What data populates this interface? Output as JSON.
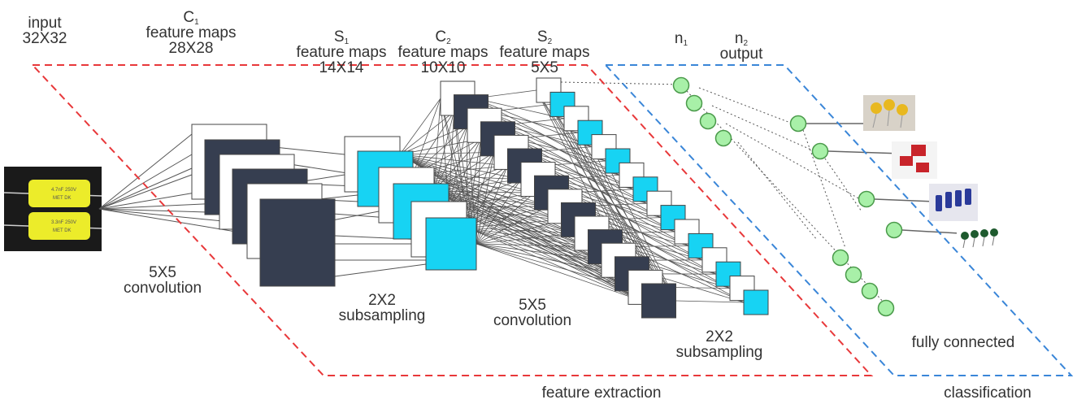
{
  "colors": {
    "dark_map": "#363e50",
    "cyan_map": "#17d3f3",
    "node": "#a8f0a8",
    "node_stroke": "#4a9a4a",
    "feature_box": "#e8383a",
    "class_box": "#3a86d8",
    "text": "#333333"
  },
  "labels": {
    "input": {
      "line1": "input",
      "line2": "32X32"
    },
    "c1": {
      "letter": "C",
      "sub": "1",
      "line2": "feature maps",
      "line3": "28X28"
    },
    "s1": {
      "letter": "S",
      "sub": "1",
      "line2": "feature maps",
      "line3": "14X14"
    },
    "c2": {
      "letter": "C",
      "sub": "2",
      "line2": "feature maps",
      "line3": "10X10"
    },
    "s2": {
      "letter": "S",
      "sub": "2",
      "line2": "feature maps",
      "line3": "5X5"
    },
    "n1": {
      "letter": "n",
      "sub": "1"
    },
    "n2": {
      "letter": "n",
      "sub": "2",
      "line2": "output"
    },
    "conv1": {
      "line1": "5X5",
      "line2": "convolution"
    },
    "sub1": {
      "line1": "2X2",
      "line2": "subsampling"
    },
    "conv2": {
      "line1": "5X5",
      "line2": "convolution"
    },
    "sub2": {
      "line1": "2X2",
      "line2": "subsampling"
    },
    "fully_connected": "fully connected",
    "feature_extraction": "feature extraction",
    "classification": "classification"
  },
  "input_photo": {
    "icon": "yellow-capacitors-photo",
    "cap1_l1": "4.7nF 250V",
    "cap1_l2": "MET DK",
    "cap2_l1": "3.3nF 250V",
    "cap2_l2": "MET DK"
  },
  "output_photos": [
    "yellow-disc-capacitors-photo",
    "red-box-capacitors-photo",
    "blue-electrolytic-capacitors-photo",
    "green-ceramic-capacitors-photo"
  ]
}
